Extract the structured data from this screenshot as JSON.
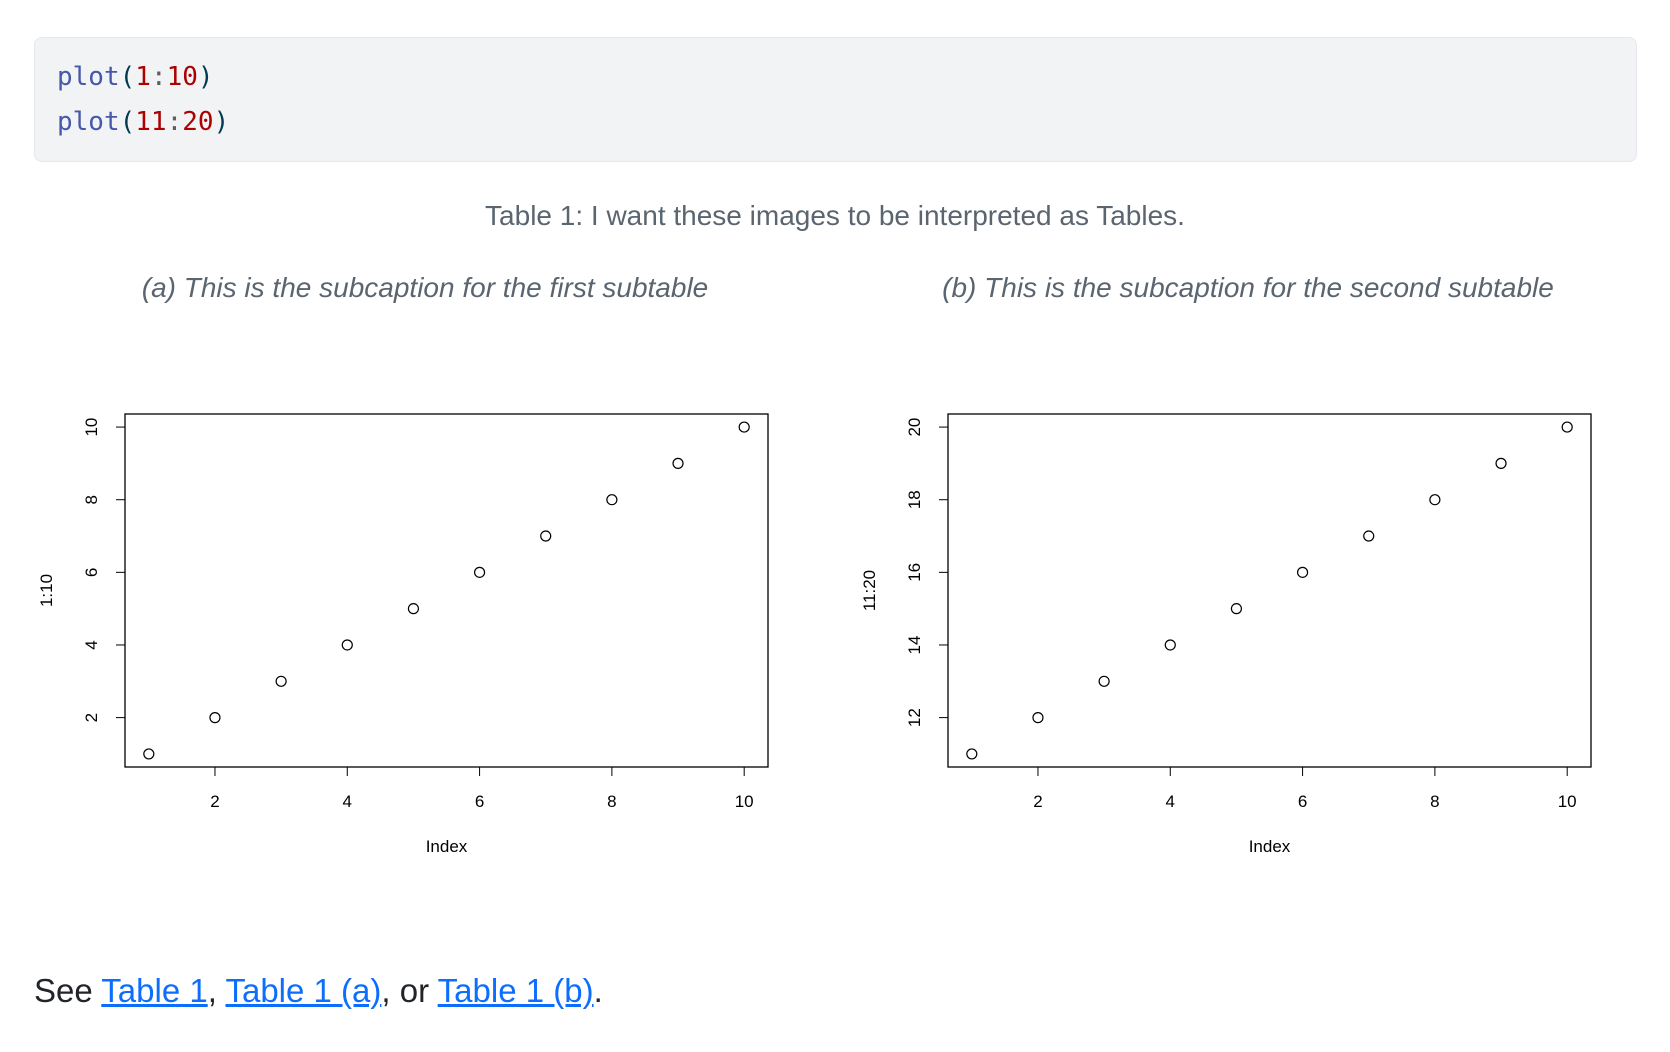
{
  "code": {
    "lines": [
      {
        "fn": "plot",
        "open": "(",
        "a": "1",
        "colon": ":",
        "b": "10",
        "close": ")"
      },
      {
        "fn": "plot",
        "open": "(",
        "a": "11",
        "colon": ":",
        "b": "20",
        "close": ")"
      }
    ]
  },
  "caption": "Table 1: I want these images to be interpreted as Tables.",
  "subcaptions": [
    "(a) This is the subcaption for the first subtable",
    "(b) This is the subcaption for the second subtable"
  ],
  "chart_data": [
    {
      "type": "scatter",
      "xlabel": "Index",
      "ylabel": "1:10",
      "x": [
        1,
        2,
        3,
        4,
        5,
        6,
        7,
        8,
        9,
        10
      ],
      "y": [
        1,
        2,
        3,
        4,
        5,
        6,
        7,
        8,
        9,
        10
      ],
      "xticks": [
        2,
        4,
        6,
        8,
        10
      ],
      "yticks": [
        2,
        4,
        6,
        8,
        10
      ],
      "xlim": [
        1,
        10
      ],
      "ylim": [
        1,
        10
      ],
      "marker": "open-circle",
      "grid": false
    },
    {
      "type": "scatter",
      "xlabel": "Index",
      "ylabel": "11:20",
      "x": [
        1,
        2,
        3,
        4,
        5,
        6,
        7,
        8,
        9,
        10
      ],
      "y": [
        11,
        12,
        13,
        14,
        15,
        16,
        17,
        18,
        19,
        20
      ],
      "xticks": [
        2,
        4,
        6,
        8,
        10
      ],
      "yticks": [
        12,
        14,
        16,
        18,
        20
      ],
      "xlim": [
        1,
        10
      ],
      "ylim": [
        11,
        20
      ],
      "marker": "open-circle",
      "grid": false
    }
  ],
  "footer": {
    "prefix": "See ",
    "link1": "Table 1",
    "sep1": ", ",
    "link2": "Table 1 (a)",
    "sep2": ", or ",
    "link3": "Table 1 (b)",
    "suffix": "."
  },
  "colors": {
    "link": "#0d6efd",
    "caption": "#5a6570",
    "code_bg": "#f1f3f5"
  }
}
